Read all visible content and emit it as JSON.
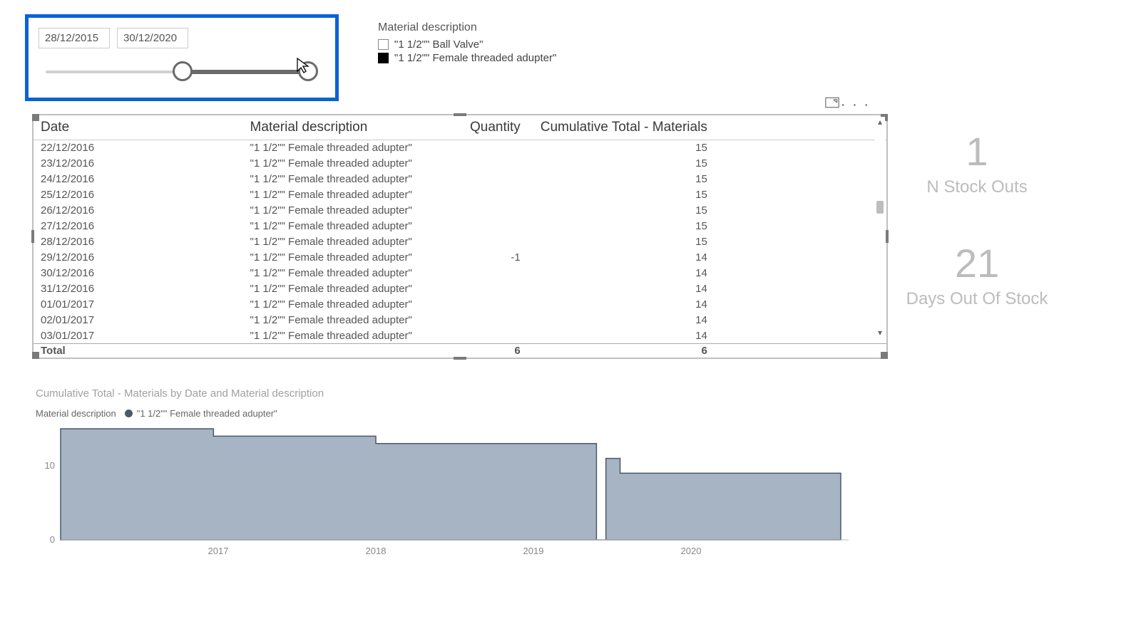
{
  "slicer": {
    "date_start": "28/12/2015",
    "date_end": "30/12/2020",
    "range_pct": {
      "start": 48,
      "end": 92
    }
  },
  "material_filter": {
    "title": "Material description",
    "items": [
      {
        "label": "\"1 1/2\"\" Ball Valve\"",
        "checked": false
      },
      {
        "label": "\"1 1/2\"\" Female threaded adupter\"",
        "checked": true
      }
    ]
  },
  "table": {
    "columns": [
      "Date",
      "Material description",
      "Quantity",
      "Cumulative Total - Materials"
    ],
    "rows": [
      [
        "22/12/2016",
        "\"1 1/2\"\" Female threaded adupter\"",
        "",
        "15"
      ],
      [
        "23/12/2016",
        "\"1 1/2\"\" Female threaded adupter\"",
        "",
        "15"
      ],
      [
        "24/12/2016",
        "\"1 1/2\"\" Female threaded adupter\"",
        "",
        "15"
      ],
      [
        "25/12/2016",
        "\"1 1/2\"\" Female threaded adupter\"",
        "",
        "15"
      ],
      [
        "26/12/2016",
        "\"1 1/2\"\" Female threaded adupter\"",
        "",
        "15"
      ],
      [
        "27/12/2016",
        "\"1 1/2\"\" Female threaded adupter\"",
        "",
        "15"
      ],
      [
        "28/12/2016",
        "\"1 1/2\"\" Female threaded adupter\"",
        "",
        "15"
      ],
      [
        "29/12/2016",
        "\"1 1/2\"\" Female threaded adupter\"",
        "-1",
        "14"
      ],
      [
        "30/12/2016",
        "\"1 1/2\"\" Female threaded adupter\"",
        "",
        "14"
      ],
      [
        "31/12/2016",
        "\"1 1/2\"\" Female threaded adupter\"",
        "",
        "14"
      ],
      [
        "01/01/2017",
        "\"1 1/2\"\" Female threaded adupter\"",
        "",
        "14"
      ],
      [
        "02/01/2017",
        "\"1 1/2\"\" Female threaded adupter\"",
        "",
        "14"
      ],
      [
        "03/01/2017",
        "\"1 1/2\"\" Female threaded adupter\"",
        "",
        "14"
      ]
    ],
    "total_label": "Total",
    "total_qty": "6",
    "total_cum": "6",
    "scroll_thumb": {
      "top_pct": 38,
      "height_pct": 6
    }
  },
  "kpi": {
    "stockouts_value": "1",
    "stockouts_label": "N Stock Outs",
    "daysout_value": "21",
    "daysout_label": "Days Out Of Stock"
  },
  "chart": {
    "title": "Cumulative Total - Materials by Date and Material description",
    "legend_lead": "Material description",
    "series_name": "\"1 1/2\"\" Female threaded adupter\"",
    "series_color": "#a6b4c4",
    "series_stroke": "#4a5a6a",
    "background": "#ffffff",
    "grid_color": "#dddddd",
    "ylim": [
      0,
      15
    ],
    "yticks": [
      0,
      10
    ],
    "xticks": [
      "2017",
      "2018",
      "2019",
      "2020"
    ],
    "x_domain": [
      2016.0,
      2021.0
    ],
    "data": [
      {
        "x": 2016.0,
        "y": 15
      },
      {
        "x": 2016.97,
        "y": 15
      },
      {
        "x": 2016.97,
        "y": 14
      },
      {
        "x": 2018.0,
        "y": 14
      },
      {
        "x": 2018.0,
        "y": 13
      },
      {
        "x": 2019.4,
        "y": 13
      },
      {
        "x": 2019.4,
        "y": 0
      },
      {
        "x": 2019.46,
        "y": 0
      },
      {
        "x": 2019.46,
        "y": 11
      },
      {
        "x": 2019.55,
        "y": 11
      },
      {
        "x": 2019.55,
        "y": 9
      },
      {
        "x": 2020.95,
        "y": 9
      }
    ]
  }
}
